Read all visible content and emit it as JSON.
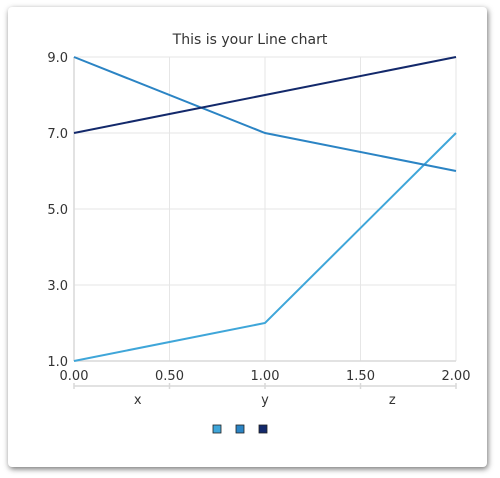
{
  "chart_data": {
    "type": "line",
    "title": "This is your Line chart",
    "x": [
      0,
      1,
      2
    ],
    "x_tick_labels": [
      "0.00",
      "0.50",
      "1.00",
      "1.50",
      "2.00"
    ],
    "x_ticks": [
      0,
      0.5,
      1,
      1.5,
      2
    ],
    "category_labels": [
      "x",
      "y",
      "z"
    ],
    "y_tick_labels": [
      "1.0",
      "3.0",
      "5.0",
      "7.0",
      "9.0"
    ],
    "y_ticks": [
      1,
      3,
      5,
      7,
      9
    ],
    "xlim": [
      0,
      2
    ],
    "ylim": [
      1,
      9
    ],
    "grid": true,
    "legend": "bottom-center",
    "series": [
      {
        "values": [
          1,
          2,
          7
        ],
        "color": "#3fa6d9"
      },
      {
        "values": [
          9,
          7,
          6
        ],
        "color": "#2b84c4"
      },
      {
        "values": [
          7,
          8,
          9
        ],
        "color": "#13296b"
      }
    ]
  }
}
